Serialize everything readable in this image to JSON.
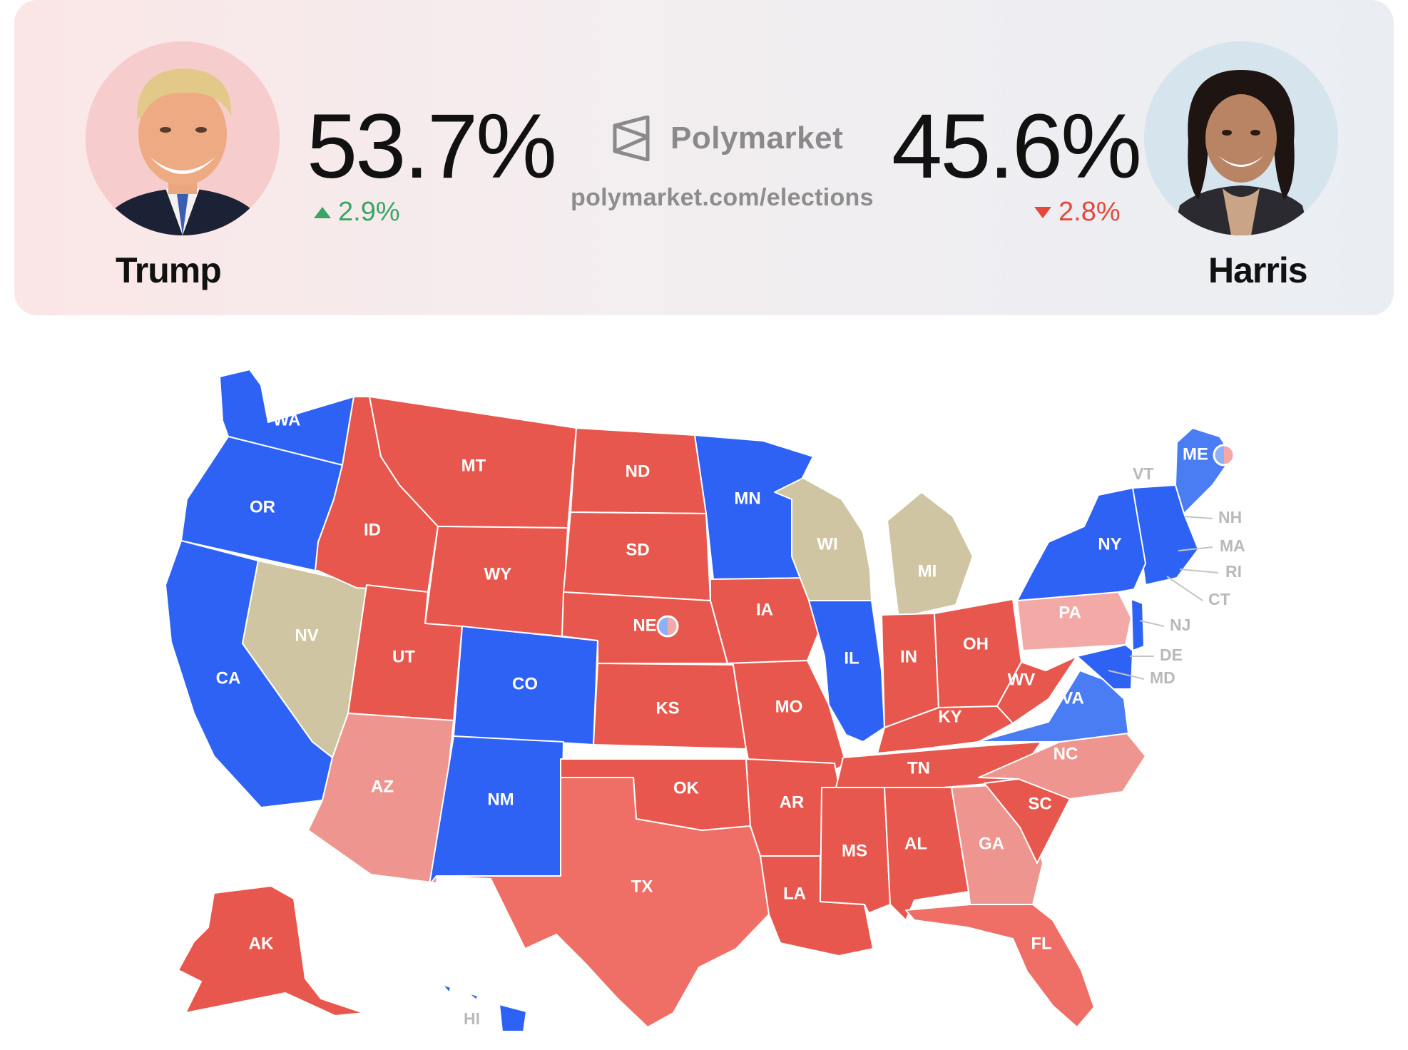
{
  "header": {
    "brand": "Polymarket",
    "url": "polymarket.com/elections",
    "candidates": [
      {
        "name": "Trump",
        "percent": "53.7%",
        "change": "2.9%",
        "direction": "up",
        "color": "#3aa563"
      },
      {
        "name": "Harris",
        "percent": "45.6%",
        "change": "2.8%",
        "direction": "down",
        "color": "#e5473b"
      }
    ]
  },
  "map": {
    "colors": {
      "dem": "#2e62f5",
      "lean_dem": "#4a7df3",
      "rep": "#e8574d",
      "lean_rep": "#ef6f66",
      "tossup_rep": "#ef9590",
      "light_rep": "#f3a9a6",
      "undecided": "#cfc5a2"
    },
    "states": [
      {
        "id": "WA",
        "label": "WA",
        "category": "dem"
      },
      {
        "id": "OR",
        "label": "OR",
        "category": "dem"
      },
      {
        "id": "CA",
        "label": "CA",
        "category": "dem"
      },
      {
        "id": "NV",
        "label": "NV",
        "category": "undecided"
      },
      {
        "id": "ID",
        "label": "ID",
        "category": "rep"
      },
      {
        "id": "MT",
        "label": "MT",
        "category": "rep"
      },
      {
        "id": "WY",
        "label": "WY",
        "category": "rep"
      },
      {
        "id": "UT",
        "label": "UT",
        "category": "rep"
      },
      {
        "id": "AZ",
        "label": "AZ",
        "category": "tossup_rep"
      },
      {
        "id": "CO",
        "label": "CO",
        "category": "dem"
      },
      {
        "id": "NM",
        "label": "NM",
        "category": "dem"
      },
      {
        "id": "ND",
        "label": "ND",
        "category": "rep"
      },
      {
        "id": "SD",
        "label": "SD",
        "category": "rep"
      },
      {
        "id": "NE",
        "label": "NE",
        "category": "rep"
      },
      {
        "id": "KS",
        "label": "KS",
        "category": "rep"
      },
      {
        "id": "OK",
        "label": "OK",
        "category": "rep"
      },
      {
        "id": "TX",
        "label": "TX",
        "category": "lean_rep"
      },
      {
        "id": "MN",
        "label": "MN",
        "category": "dem"
      },
      {
        "id": "IA",
        "label": "IA",
        "category": "rep"
      },
      {
        "id": "MO",
        "label": "MO",
        "category": "rep"
      },
      {
        "id": "AR",
        "label": "AR",
        "category": "rep"
      },
      {
        "id": "LA",
        "label": "LA",
        "category": "rep"
      },
      {
        "id": "WI",
        "label": "WI",
        "category": "undecided"
      },
      {
        "id": "IL",
        "label": "IL",
        "category": "dem"
      },
      {
        "id": "MI",
        "label": "MI",
        "category": "undecided"
      },
      {
        "id": "IN",
        "label": "IN",
        "category": "rep"
      },
      {
        "id": "OH",
        "label": "OH",
        "category": "rep"
      },
      {
        "id": "KY",
        "label": "KY",
        "category": "rep"
      },
      {
        "id": "TN",
        "label": "TN",
        "category": "rep"
      },
      {
        "id": "MS",
        "label": "MS",
        "category": "rep"
      },
      {
        "id": "AL",
        "label": "AL",
        "category": "rep"
      },
      {
        "id": "GA",
        "label": "GA",
        "category": "tossup_rep"
      },
      {
        "id": "FL",
        "label": "FL",
        "category": "lean_rep"
      },
      {
        "id": "SC",
        "label": "SC",
        "category": "rep"
      },
      {
        "id": "NC",
        "label": "NC",
        "category": "tossup_rep"
      },
      {
        "id": "VA",
        "label": "VA",
        "category": "lean_dem"
      },
      {
        "id": "WV",
        "label": "WV",
        "category": "rep"
      },
      {
        "id": "PA",
        "label": "PA",
        "category": "light_rep"
      },
      {
        "id": "NY",
        "label": "NY",
        "category": "dem"
      },
      {
        "id": "ME",
        "label": "ME",
        "category": "lean_dem"
      },
      {
        "id": "AK",
        "label": "AK",
        "category": "rep"
      },
      {
        "id": "HI",
        "label": "HI",
        "category": "dem"
      }
    ],
    "small_states": [
      {
        "id": "VT",
        "label": "VT"
      },
      {
        "id": "NH",
        "label": "NH"
      },
      {
        "id": "MA",
        "label": "MA"
      },
      {
        "id": "RI",
        "label": "RI"
      },
      {
        "id": "CT",
        "label": "CT"
      },
      {
        "id": "NJ",
        "label": "NJ"
      },
      {
        "id": "DE",
        "label": "DE"
      },
      {
        "id": "MD",
        "label": "MD"
      },
      {
        "id": "HI",
        "label": "HI"
      }
    ]
  }
}
